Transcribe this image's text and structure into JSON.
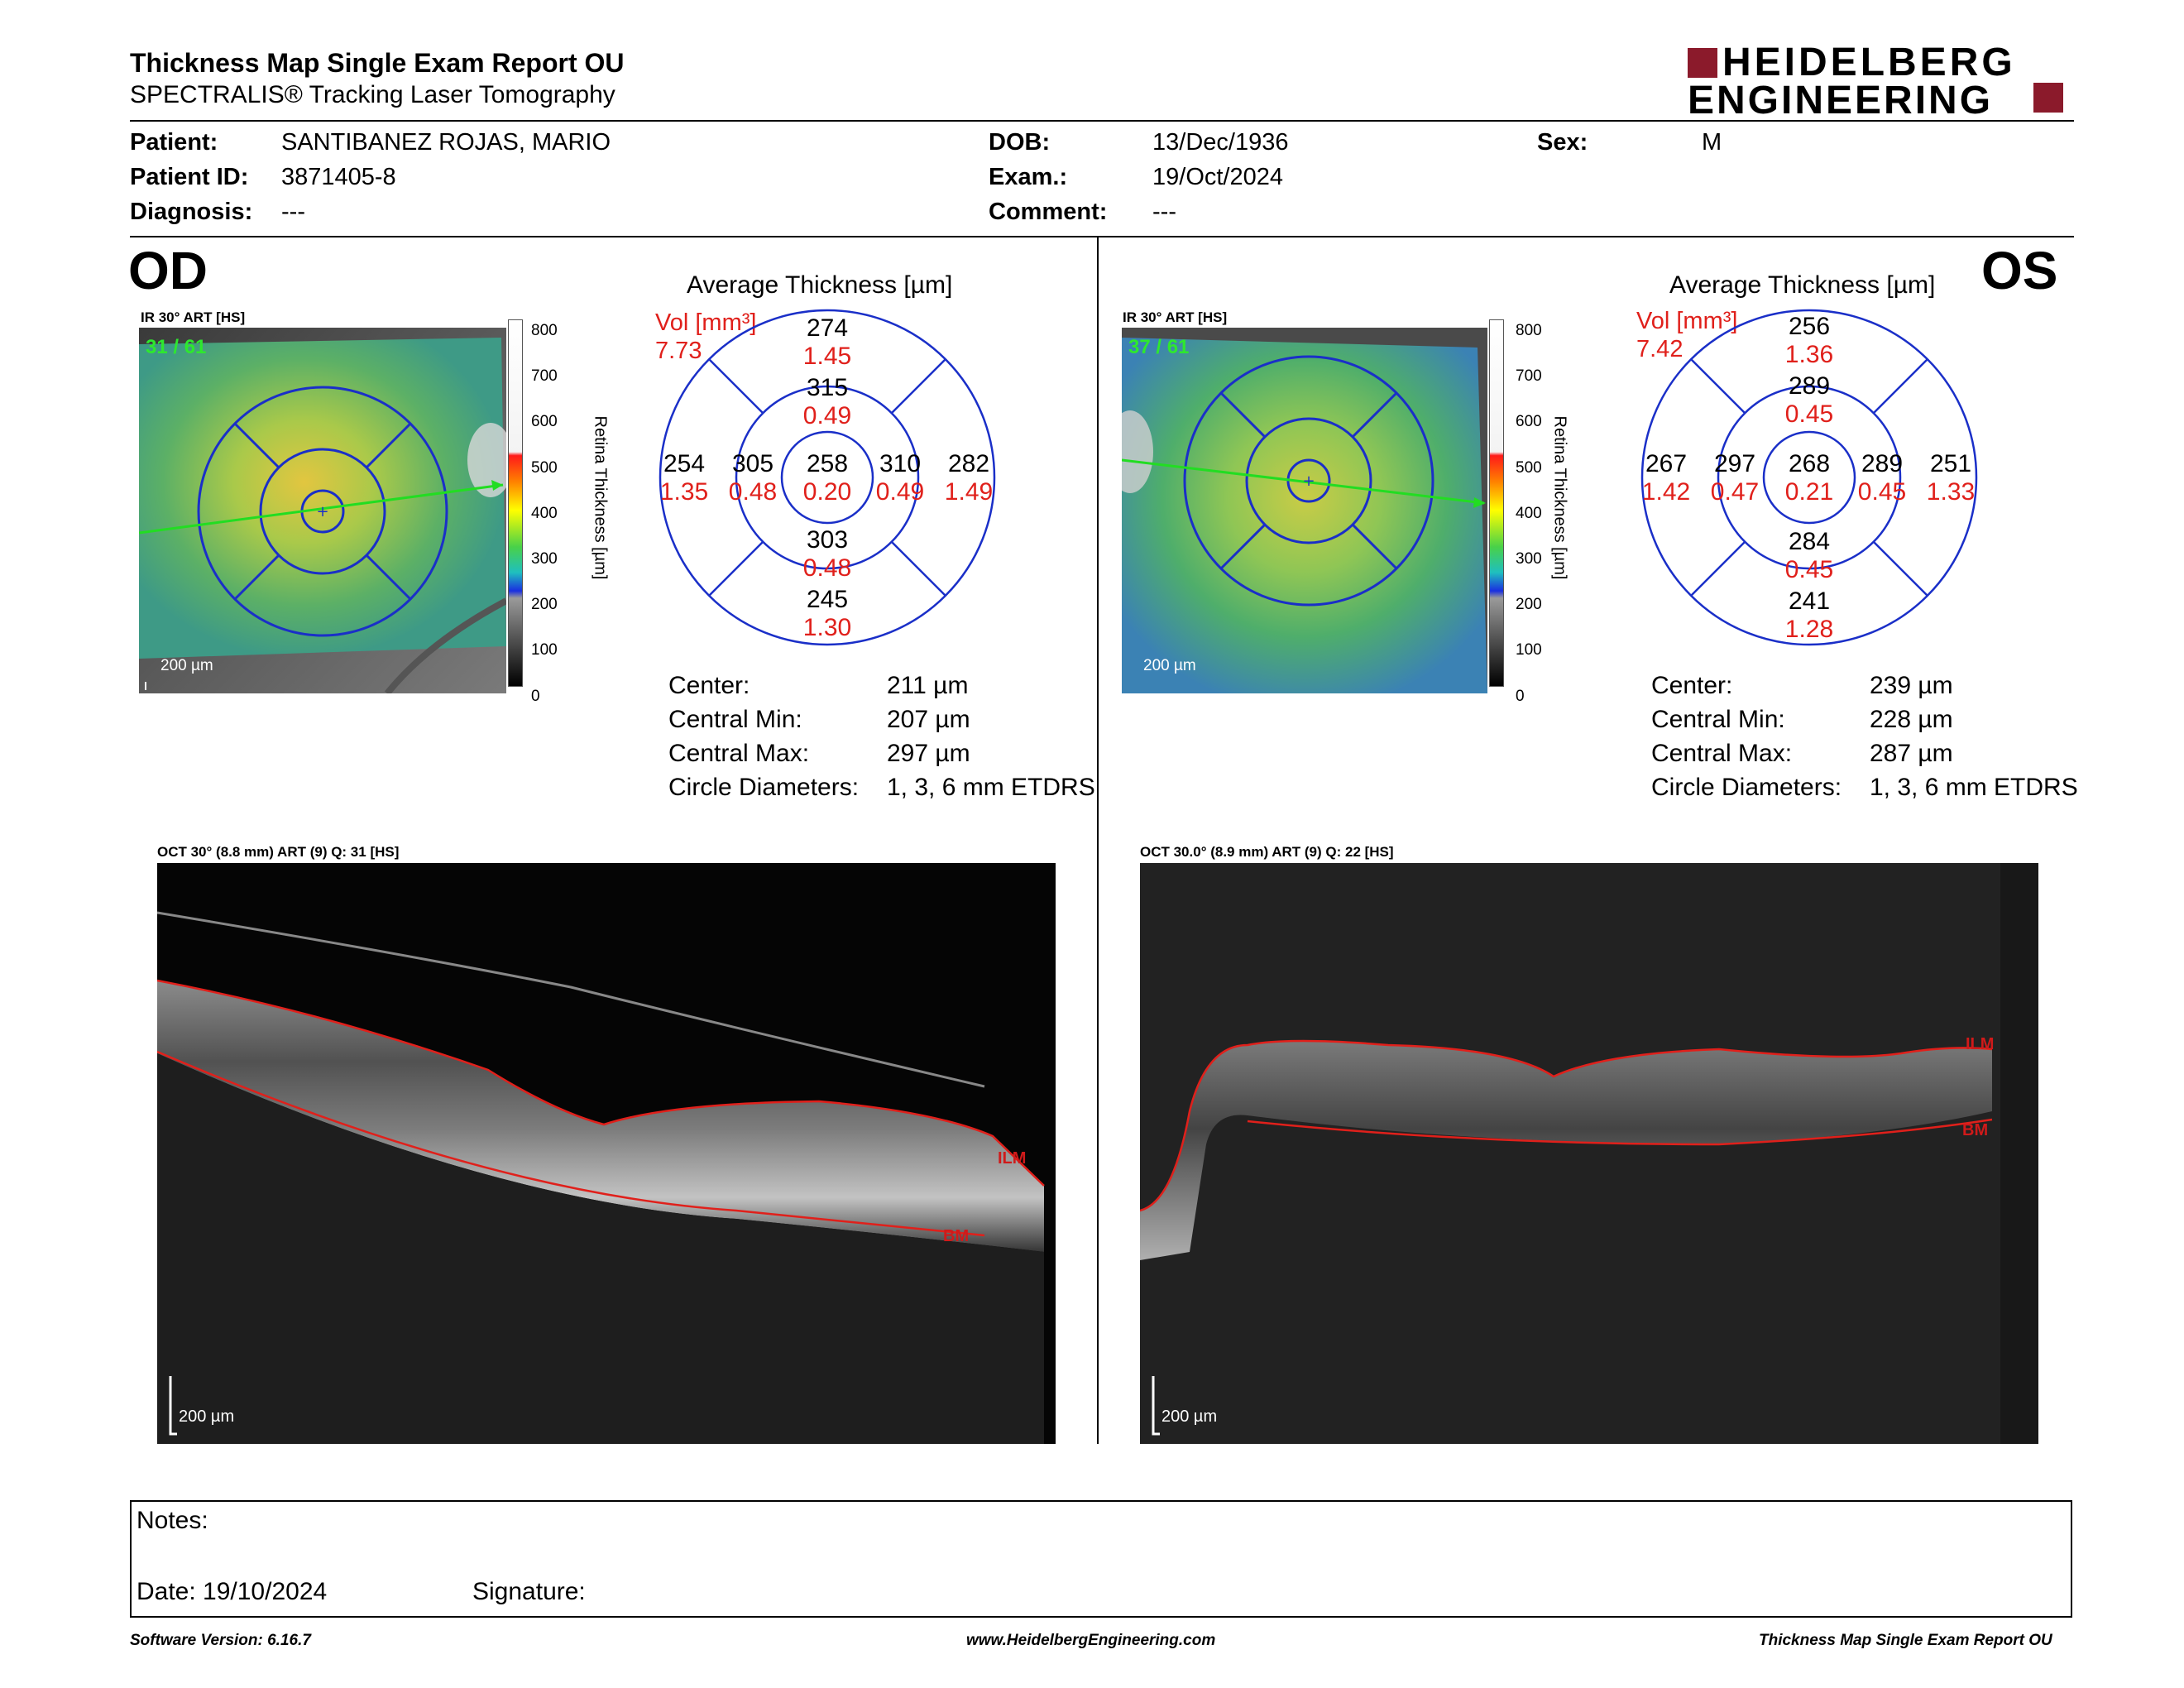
{
  "header": {
    "title": "Thickness Map Single Exam Report OU",
    "subtitle": "SPECTRALIS® Tracking Laser Tomography",
    "logo_line1": "HEIDELBERG",
    "logo_line2": "ENGINEERING",
    "logo_color": "#8b1a2b"
  },
  "patient": {
    "patient_label": "Patient:",
    "patient_value": "SANTIBANEZ ROJAS, MARIO",
    "id_label": "Patient ID:",
    "id_value": "3871405-8",
    "diag_label": "Diagnosis:",
    "diag_value": "---",
    "dob_label": "DOB:",
    "dob_value": "13/Dec/1936",
    "exam_label": "Exam.:",
    "exam_value": "19/Oct/2024",
    "comment_label": "Comment:",
    "comment_value": "---",
    "sex_label": "Sex:",
    "sex_value": "M"
  },
  "colorbar": {
    "ticks": [
      "800",
      "700",
      "600",
      "500",
      "400",
      "300",
      "200",
      "100",
      "0"
    ],
    "label": "Retina  Thickness [µm]"
  },
  "od": {
    "eye": "OD",
    "ir_label": "IR 30° ART [HS]",
    "ir_frame": "31 / 61",
    "scale": "200 µm",
    "avg_title": "Average Thickness [µm]",
    "vol_label": "Vol [mm³]",
    "vol_total": "7.73",
    "grid": {
      "outer_sup": {
        "t": "274",
        "v": "1.45"
      },
      "inner_sup": {
        "t": "315",
        "v": "0.49"
      },
      "outer_temp": {
        "t": "254",
        "v": "1.35"
      },
      "inner_temp": {
        "t": "305",
        "v": "0.48"
      },
      "center": {
        "t": "258",
        "v": "0.20"
      },
      "inner_nas": {
        "t": "310",
        "v": "0.49"
      },
      "outer_nas": {
        "t": "282",
        "v": "1.49"
      },
      "inner_inf": {
        "t": "303",
        "v": "0.48"
      },
      "outer_inf": {
        "t": "245",
        "v": "1.30"
      }
    },
    "stats": [
      {
        "label": "Center:",
        "value": "211 µm"
      },
      {
        "label": "Central Min:",
        "value": "207 µm"
      },
      {
        "label": "Central Max:",
        "value": "297 µm"
      },
      {
        "label": "Circle Diameters:",
        "value": "1, 3, 6 mm ETDRS"
      }
    ],
    "oct_label": "OCT 30° (8.8 mm) ART (9) Q: 31 [HS]",
    "ilm": "ILM",
    "bm": "BM"
  },
  "os": {
    "eye": "OS",
    "ir_label": "IR 30° ART [HS]",
    "ir_frame": "37 / 61",
    "scale": "200 µm",
    "avg_title": "Average Thickness [µm]",
    "vol_label": "Vol [mm³]",
    "vol_total": "7.42",
    "grid": {
      "outer_sup": {
        "t": "256",
        "v": "1.36"
      },
      "inner_sup": {
        "t": "289",
        "v": "0.45"
      },
      "outer_temp": {
        "t": "267",
        "v": "1.42"
      },
      "inner_temp": {
        "t": "297",
        "v": "0.47"
      },
      "center": {
        "t": "268",
        "v": "0.21"
      },
      "inner_nas": {
        "t": "289",
        "v": "0.45"
      },
      "outer_nas": {
        "t": "251",
        "v": "1.33"
      },
      "inner_inf": {
        "t": "284",
        "v": "0.45"
      },
      "outer_inf": {
        "t": "241",
        "v": "1.28"
      }
    },
    "stats": [
      {
        "label": "Center:",
        "value": "239 µm"
      },
      {
        "label": "Central Min:",
        "value": "228 µm"
      },
      {
        "label": "Central Max:",
        "value": "287 µm"
      },
      {
        "label": "Circle Diameters:",
        "value": "1, 3, 6 mm ETDRS"
      }
    ],
    "oct_label": "OCT 30.0° (8.9 mm) ART (9) Q: 22 [HS]",
    "ilm": "ILM",
    "bm": "BM"
  },
  "notes": {
    "notes_label": "Notes:",
    "date_label": "Date: 19/10/2024",
    "signature_label": "Signature:"
  },
  "footer": {
    "version": "Software Version: 6.16.7",
    "url": "www.HeidelbergEngineering.com",
    "report": "Thickness Map Single Exam Report OU"
  }
}
